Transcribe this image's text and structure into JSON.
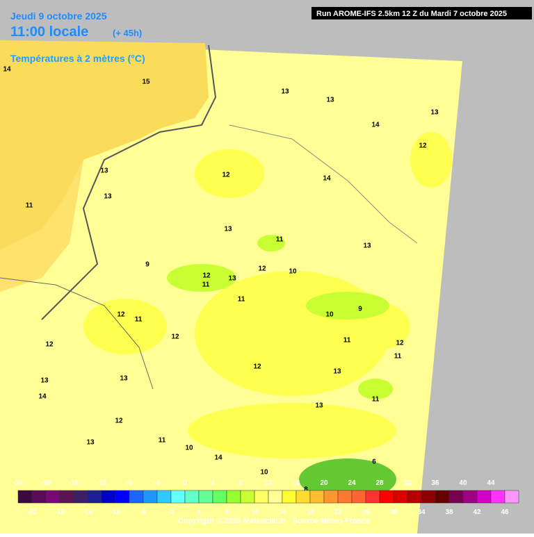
{
  "header": {
    "date": "Jeudi 9 octobre 2025",
    "time": "11:00 locale",
    "lead": "(+ 45h)",
    "field": "Températures à 2 mètres (°C)",
    "run": "Run AROME-IFS 2.5km 12 Z du Mardi 7 octobre 2025"
  },
  "map": {
    "contour_labels": [
      14,
      15,
      13,
      13,
      13,
      12,
      14,
      13,
      12,
      14,
      13,
      11,
      13,
      13,
      9,
      11,
      12,
      11,
      13,
      12,
      10,
      11,
      9,
      12,
      10,
      11,
      12,
      11,
      12,
      12,
      13,
      12,
      13,
      13,
      11,
      14,
      13,
      12,
      13,
      11,
      10,
      14,
      11,
      10,
      8,
      6
    ]
  },
  "legend": {
    "colors": [
      "#3c0a3c",
      "#5a0a5a",
      "#780a78",
      "#5a1450",
      "#3c1e64",
      "#1e1e96",
      "#0000c8",
      "#0000ff",
      "#1e64ff",
      "#1e96ff",
      "#32c8ff",
      "#64ffff",
      "#64ffc8",
      "#64ff96",
      "#64ff64",
      "#96ff32",
      "#c8ff32",
      "#ffff64",
      "#ffff96",
      "#ffff32",
      "#ffdc32",
      "#ffbe32",
      "#ff9632",
      "#ff7832",
      "#ff6432",
      "#ff3232",
      "#ff0000",
      "#dc0000",
      "#b40000",
      "#8c0000",
      "#640000",
      "#780050",
      "#a00082",
      "#d200c8",
      "#ff32ff",
      "#ff96ff"
    ],
    "top_labels": [
      -24,
      -20,
      -16,
      -12,
      -8,
      -4,
      0,
      4,
      8,
      12,
      16,
      20,
      24,
      28,
      32,
      36,
      40,
      44
    ],
    "bottom_labels": [
      -22,
      -18,
      -14,
      -10,
      -6,
      -2,
      2,
      6,
      10,
      14,
      18,
      22,
      26,
      30,
      34,
      38,
      42,
      46
    ]
  },
  "footer": {
    "copyright": "Copyright © 2025 Meteociel.fr - Source Meteo-France"
  }
}
